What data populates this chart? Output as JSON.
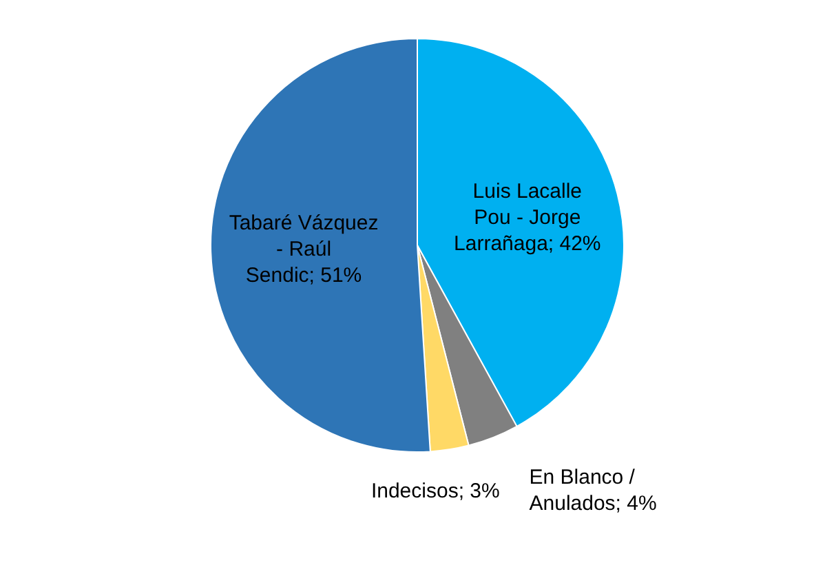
{
  "chart_data": {
    "type": "pie",
    "categories": [
      "Luis Lacalle Pou - Jorge Larrañaga",
      "En Blanco / Anulados",
      "Indecisos",
      "Tabaré Vázquez - Raúl Sendic"
    ],
    "value_labels": [
      "42%",
      "4%",
      "3%",
      "51%"
    ],
    "values": [
      42,
      4,
      3,
      51
    ],
    "colors": [
      "#00b0f0",
      "#808080",
      "#ffd966",
      "#2e75b6"
    ],
    "legend": false
  }
}
